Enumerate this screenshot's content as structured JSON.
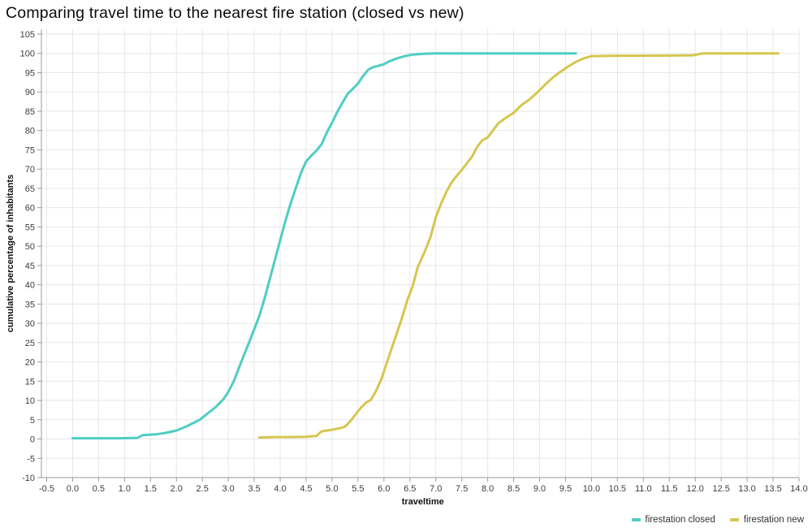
{
  "chart_data": {
    "type": "line",
    "title": "Comparing travel time to the nearest fire station (closed vs new)",
    "xlabel": "traveltime",
    "ylabel": "cumulative percentage of inhabitants",
    "xlim": [
      -0.5,
      14.0
    ],
    "x_tick_step": 0.5,
    "ylim": [
      -10,
      105
    ],
    "y_tick_step": 5,
    "grid": true,
    "legend_position": "bottom-right",
    "series": [
      {
        "name": "firestation closed",
        "color": "#4FCDC3",
        "points": [
          [
            0,
            0.2
          ],
          [
            0.3,
            0.2
          ],
          [
            0.6,
            0.2
          ],
          [
            0.9,
            0.2
          ],
          [
            1.25,
            0.3
          ],
          [
            1.35,
            1.0
          ],
          [
            1.6,
            1.2
          ],
          [
            1.8,
            1.6
          ],
          [
            2.0,
            2.2
          ],
          [
            2.2,
            3.3
          ],
          [
            2.45,
            5.0
          ],
          [
            2.6,
            6.6
          ],
          [
            2.75,
            8.2
          ],
          [
            2.9,
            10.2
          ],
          [
            3.0,
            12.2
          ],
          [
            3.1,
            14.8
          ],
          [
            3.25,
            20.0
          ],
          [
            3.4,
            25.0
          ],
          [
            3.5,
            28.5
          ],
          [
            3.6,
            32.0
          ],
          [
            3.7,
            36.5
          ],
          [
            3.8,
            41.5
          ],
          [
            3.9,
            46.5
          ],
          [
            4.0,
            51.5
          ],
          [
            4.1,
            56.5
          ],
          [
            4.2,
            61.0
          ],
          [
            4.3,
            65.0
          ],
          [
            4.4,
            69.0
          ],
          [
            4.5,
            72.0
          ],
          [
            4.6,
            73.5
          ],
          [
            4.7,
            74.8
          ],
          [
            4.8,
            76.5
          ],
          [
            4.9,
            79.5
          ],
          [
            5.0,
            82.0
          ],
          [
            5.1,
            84.8
          ],
          [
            5.2,
            87.2
          ],
          [
            5.3,
            89.5
          ],
          [
            5.4,
            90.8
          ],
          [
            5.5,
            92.2
          ],
          [
            5.6,
            94.2
          ],
          [
            5.7,
            95.8
          ],
          [
            5.8,
            96.5
          ],
          [
            5.9,
            96.8
          ],
          [
            6.0,
            97.2
          ],
          [
            6.1,
            97.9
          ],
          [
            6.25,
            98.7
          ],
          [
            6.4,
            99.3
          ],
          [
            6.55,
            99.7
          ],
          [
            6.75,
            99.9
          ],
          [
            7.0,
            100
          ],
          [
            7.5,
            100
          ],
          [
            8.0,
            100
          ],
          [
            8.5,
            100
          ],
          [
            9.0,
            100
          ],
          [
            9.4,
            100
          ],
          [
            9.7,
            100
          ]
        ]
      },
      {
        "name": "firestation new",
        "color": "#D6C64F",
        "points": [
          [
            3.6,
            0.4
          ],
          [
            3.9,
            0.5
          ],
          [
            4.2,
            0.5
          ],
          [
            4.5,
            0.6
          ],
          [
            4.7,
            0.8
          ],
          [
            4.8,
            2.0
          ],
          [
            5.0,
            2.4
          ],
          [
            5.15,
            2.8
          ],
          [
            5.25,
            3.2
          ],
          [
            5.35,
            4.6
          ],
          [
            5.45,
            6.3
          ],
          [
            5.55,
            8.0
          ],
          [
            5.65,
            9.4
          ],
          [
            5.75,
            10.2
          ],
          [
            5.85,
            12.5
          ],
          [
            5.95,
            15.5
          ],
          [
            6.05,
            19.5
          ],
          [
            6.15,
            23.5
          ],
          [
            6.25,
            27.5
          ],
          [
            6.35,
            31.5
          ],
          [
            6.45,
            36.0
          ],
          [
            6.55,
            39.5
          ],
          [
            6.65,
            44.5
          ],
          [
            6.8,
            49.0
          ],
          [
            6.9,
            52.5
          ],
          [
            7.0,
            57.5
          ],
          [
            7.1,
            61.0
          ],
          [
            7.2,
            64.0
          ],
          [
            7.3,
            66.5
          ],
          [
            7.4,
            68.2
          ],
          [
            7.5,
            69.8
          ],
          [
            7.6,
            71.5
          ],
          [
            7.7,
            73.3
          ],
          [
            7.8,
            75.8
          ],
          [
            7.9,
            77.5
          ],
          [
            8.0,
            78.2
          ],
          [
            8.1,
            80.0
          ],
          [
            8.2,
            81.8
          ],
          [
            8.35,
            83.3
          ],
          [
            8.5,
            84.6
          ],
          [
            8.65,
            86.6
          ],
          [
            8.8,
            88.0
          ],
          [
            8.95,
            89.8
          ],
          [
            9.1,
            91.8
          ],
          [
            9.25,
            93.7
          ],
          [
            9.4,
            95.2
          ],
          [
            9.55,
            96.6
          ],
          [
            9.7,
            97.8
          ],
          [
            9.85,
            98.7
          ],
          [
            10.0,
            99.3
          ],
          [
            10.5,
            99.4
          ],
          [
            11.0,
            99.4
          ],
          [
            11.5,
            99.45
          ],
          [
            11.95,
            99.5
          ],
          [
            12.15,
            100
          ],
          [
            12.8,
            100
          ],
          [
            13.3,
            100
          ],
          [
            13.6,
            100
          ]
        ]
      }
    ]
  },
  "colors": {
    "background": "#ffffff",
    "grid": "#e7e7e7",
    "axis": "#9a9a9a",
    "tick_label": "#3d3d3d",
    "axis_title": "#111111",
    "title": "#0b0b0b",
    "legend_text": "#333333"
  }
}
